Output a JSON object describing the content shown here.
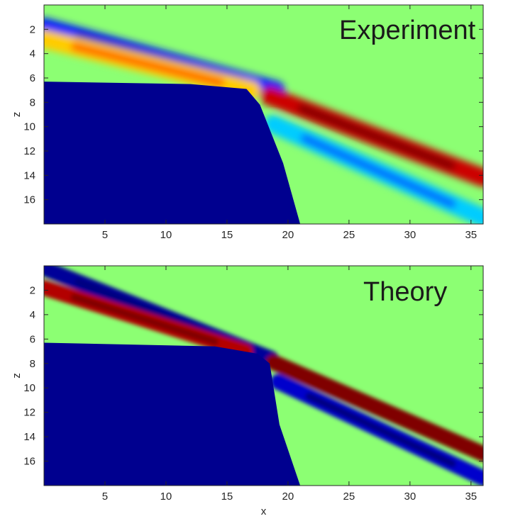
{
  "chart_data": [
    {
      "type": "heatmap",
      "title": "Experiment",
      "xlabel": "",
      "ylabel": "z",
      "xlim": [
        0,
        36
      ],
      "ylim": [
        18,
        0
      ],
      "xticks": [
        5,
        10,
        15,
        20,
        25,
        30,
        35
      ],
      "yticks": [
        2,
        4,
        6,
        8,
        10,
        12,
        14,
        16
      ],
      "colormap": "jet",
      "background": "#8cff73",
      "obstacle": {
        "color": "#00008f",
        "polygon_xz": [
          [
            0,
            6.3
          ],
          [
            12,
            6.5
          ],
          [
            16.6,
            6.9
          ],
          [
            17.7,
            8.2
          ],
          [
            19.6,
            13
          ],
          [
            21,
            18
          ],
          [
            0,
            18
          ]
        ]
      },
      "beams": [
        {
          "name": "",
          "from_xz": [
            0,
            1.8
          ],
          "to_xz": [
            19,
            7.0
          ],
          "level": -0.7
        },
        {
          "name": "",
          "from_xz": [
            0,
            2.8
          ],
          "to_xz": [
            17,
            7.0
          ],
          "level": 0.35
        },
        {
          "name": "",
          "from_xz": [
            18.5,
            7.5
          ],
          "to_xz": [
            36,
            14.2
          ],
          "level": 0.85
        },
        {
          "name": "",
          "from_xz": [
            18.8,
            9.8
          ],
          "to_xz": [
            36,
            17.5
          ],
          "level": -0.35
        }
      ]
    },
    {
      "type": "heatmap",
      "title": "Theory",
      "xlabel": "x",
      "ylabel": "z",
      "xlim": [
        0,
        36
      ],
      "ylim": [
        18,
        0
      ],
      "xticks": [
        5,
        10,
        15,
        20,
        25,
        30,
        35
      ],
      "yticks": [
        2,
        4,
        6,
        8,
        10,
        12,
        14,
        16
      ],
      "colormap": "jet",
      "background": "#8cff73",
      "obstacle": {
        "color": "#00008f",
        "polygon_xz": [
          [
            0,
            6.3
          ],
          [
            14,
            6.6
          ],
          [
            17.5,
            7.2
          ],
          [
            18.5,
            8.0
          ],
          [
            19.3,
            13
          ],
          [
            21,
            18
          ],
          [
            0,
            18
          ]
        ]
      },
      "beams": [
        {
          "name": "",
          "from_xz": [
            0,
            0.2
          ],
          "to_xz": [
            18.6,
            7.6
          ],
          "level": -0.95
        },
        {
          "name": "",
          "from_xz": [
            0,
            1.8
          ],
          "to_xz": [
            16.5,
            7.0
          ],
          "level": 0.9
        },
        {
          "name": "",
          "from_xz": [
            18.8,
            7.9
          ],
          "to_xz": [
            36,
            15.4
          ],
          "level": 1.0
        },
        {
          "name": "",
          "from_xz": [
            19.2,
            9.5
          ],
          "to_xz": [
            36,
            17.4
          ],
          "level": -0.85
        }
      ]
    }
  ]
}
